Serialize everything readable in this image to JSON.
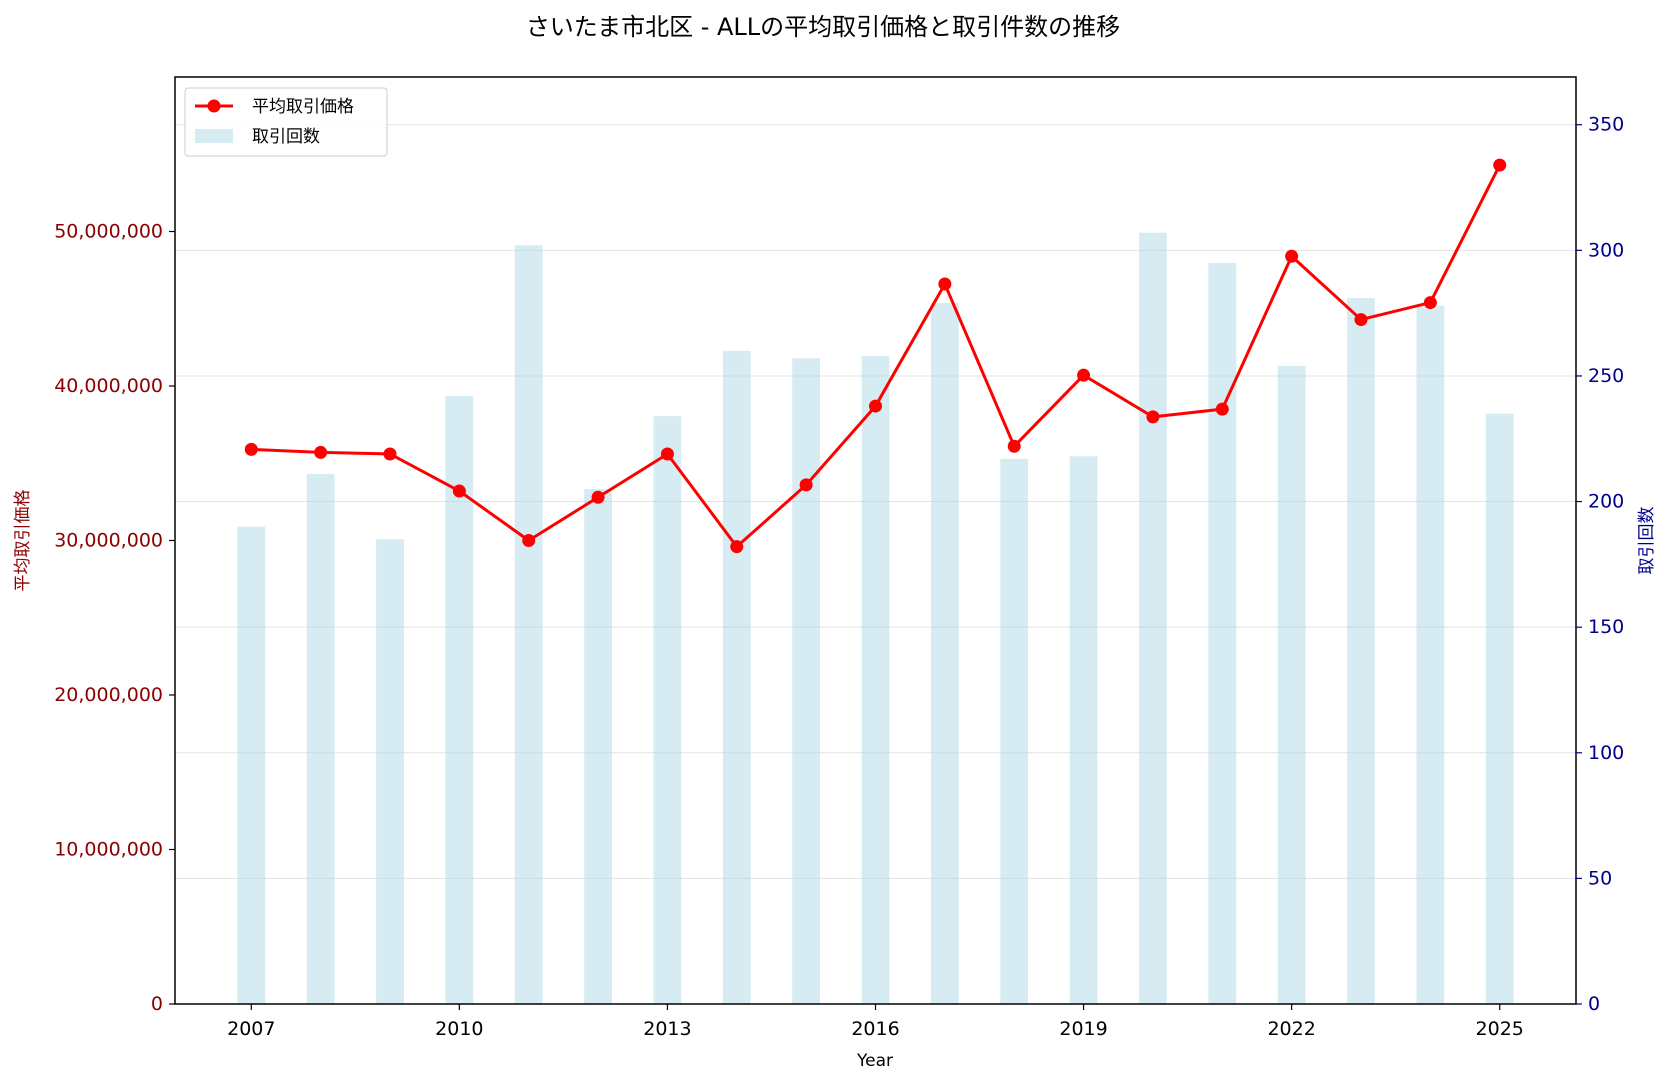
{
  "chart_data": {
    "type": "bar+line",
    "title": "さいたま市北区 - ALLの平均取引価格と取引件数の推移",
    "xlabel": "Year",
    "ylabel_left": "平均取引価格",
    "ylabel_right": "取引回数",
    "x": [
      2007,
      2008,
      2009,
      2010,
      2011,
      2012,
      2013,
      2014,
      2015,
      2016,
      2017,
      2018,
      2019,
      2020,
      2021,
      2022,
      2023,
      2024,
      2025
    ],
    "x_ticks": [
      "2007",
      "2010",
      "2013",
      "2016",
      "2019",
      "2022",
      "2025"
    ],
    "xlim": [
      2005.9,
      2026.1
    ],
    "ylim_left": [
      0,
      60000000
    ],
    "ylim_right": [
      0,
      369
    ],
    "left_ticks": [
      "0",
      "10,000,000",
      "20,000,000",
      "30,000,000",
      "40,000,000",
      "50,000,000"
    ],
    "left_tick_values": [
      0,
      10000000,
      20000000,
      30000000,
      40000000,
      50000000
    ],
    "right_ticks": [
      "0",
      "50",
      "100",
      "150",
      "200",
      "250",
      "300",
      "350"
    ],
    "right_tick_values": [
      0,
      50,
      100,
      150,
      200,
      250,
      300,
      350
    ],
    "series": [
      {
        "name": "平均取引価格",
        "kind": "line",
        "axis": "left",
        "color": "#ff0000",
        "values": [
          35900000,
          35700000,
          35600000,
          33200000,
          30000000,
          32800000,
          35600000,
          29600000,
          33600000,
          38700000,
          46600000,
          36100000,
          40700000,
          38000000,
          38500000,
          48400000,
          44300000,
          45400000,
          54300000
        ]
      },
      {
        "name": "取引回数",
        "kind": "bar",
        "axis": "right",
        "color": "#add8e6",
        "values": [
          190,
          211,
          185,
          242,
          302,
          205,
          234,
          260,
          257,
          258,
          279,
          217,
          218,
          307,
          295,
          254,
          281,
          278,
          235
        ]
      }
    ],
    "grid": true,
    "legend_position": "top-left",
    "colors": {
      "left_axis": "#8b0000",
      "right_axis": "#00008b",
      "line": "#ff0000",
      "bar": "#add8e6"
    }
  }
}
